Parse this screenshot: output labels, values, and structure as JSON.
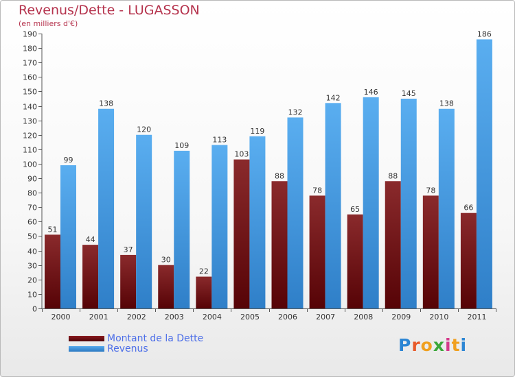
{
  "title": "Revenus/Dette - LUGASSON",
  "subtitle": "(en milliers d'€)",
  "logo": "Proxiti",
  "colors": {
    "title": "#b5334d",
    "dette": "#7a0f14",
    "revenus": "#3f98e0",
    "legend_text": "#4c6ee8"
  },
  "chart_data": {
    "type": "bar",
    "categories": [
      "2000",
      "2001",
      "2002",
      "2003",
      "2004",
      "2005",
      "2006",
      "2007",
      "2008",
      "2009",
      "2010",
      "2011"
    ],
    "series": [
      {
        "name": "Montant de la Dette",
        "values": [
          51,
          44,
          37,
          30,
          22,
          103,
          88,
          78,
          65,
          88,
          78,
          66
        ]
      },
      {
        "name": "Revenus",
        "values": [
          99,
          138,
          120,
          109,
          113,
          119,
          132,
          142,
          146,
          145,
          138,
          186
        ]
      }
    ],
    "ylim": [
      0,
      190
    ],
    "yticks": [
      0,
      10,
      20,
      30,
      40,
      50,
      60,
      70,
      80,
      90,
      100,
      110,
      120,
      130,
      140,
      150,
      160,
      170,
      180,
      190
    ],
    "grid": false,
    "legend_position": "bottom-left"
  }
}
